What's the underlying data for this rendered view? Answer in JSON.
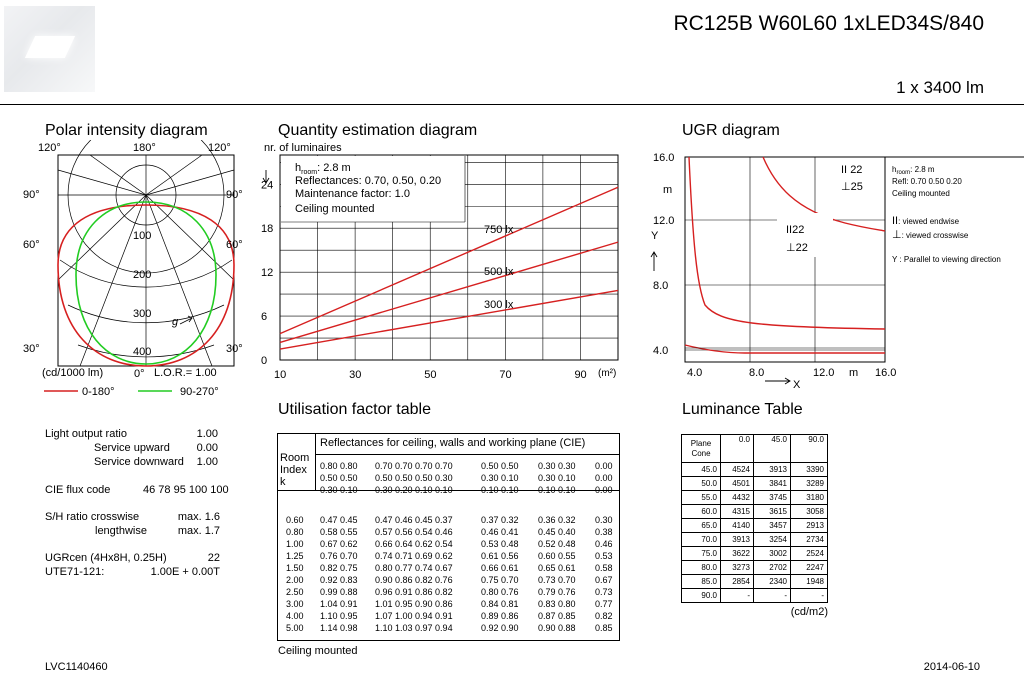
{
  "header": {
    "title": "RC125B W60L60 1xLED34S/840",
    "lumen": "1 x 3400 lm"
  },
  "polar": {
    "title": "Polar intensity diagram",
    "angle_labels": [
      "120°",
      "180°",
      "120°",
      "90°",
      "90°",
      "60°",
      "60°",
      "30°",
      "30°",
      "0°"
    ],
    "ring_labels": [
      "100",
      "200",
      "300",
      "400"
    ],
    "gamma": "g",
    "unit": "(cd/1000 lm)",
    "zero": "0°",
    "lor": "L.O.R.= 1.00",
    "legend": [
      {
        "label": "0-180°",
        "color": "#d62020"
      },
      {
        "label": "90-270°",
        "color": "#22cc22"
      }
    ]
  },
  "quantity": {
    "title": "Quantity estimation diagram",
    "ylabel": "nr. of luminaires",
    "y_ticks": [
      "24",
      "18",
      "12",
      "6",
      "0"
    ],
    "x_ticks": [
      "10",
      "30",
      "50",
      "70",
      "90"
    ],
    "x_unit": "(m²)",
    "info": [
      "h room: 2.8 m",
      "Reflectances: 0.70, 0.50, 0.20",
      "Maintenance factor: 1.0",
      "Ceiling mounted"
    ],
    "h_sub": "room",
    "h_rest": ": 2.8 m",
    "info_lines": [
      "Reflectances: 0.70, 0.50, 0.20",
      "Maintenance factor: 1.0",
      "Ceiling mounted"
    ],
    "series_labels": [
      "750 lx",
      "500 lx",
      "300 lx"
    ],
    "line_color": "#d62020"
  },
  "chart_data": [
    {
      "type": "line",
      "title": "Quantity estimation diagram",
      "xlabel": "(m²)",
      "ylabel": "nr. of luminaires",
      "xlim": [
        10,
        100
      ],
      "ylim": [
        0,
        28
      ],
      "series": [
        {
          "name": "750 lx",
          "x": [
            10,
            100
          ],
          "y": [
            3.6,
            23.6
          ]
        },
        {
          "name": "500 lx",
          "x": [
            10,
            100
          ],
          "y": [
            2.4,
            16.1
          ]
        },
        {
          "name": "300 lx",
          "x": [
            10,
            100
          ],
          "y": [
            1.5,
            9.5
          ]
        }
      ]
    },
    {
      "type": "line",
      "title": "UGR diagram",
      "xlabel": "X",
      "ylabel": "Y",
      "xlim": [
        2.8,
        16.0
      ],
      "ylim": [
        3.5,
        16.0
      ],
      "x_ticks": [
        "4.0",
        "8.0",
        "12.0",
        "16.0"
      ],
      "y_ticks": [
        "16.0",
        "12.0",
        "8.0",
        "4.0"
      ]
    }
  ],
  "ugr": {
    "title": "UGR diagram",
    "y_ticks": [
      "16.0",
      "12.0",
      "8.0",
      "4.0"
    ],
    "x_ticks": [
      "4.0",
      "8.0",
      "12.0",
      "16.0"
    ],
    "m_label": "m",
    "x_letter": "X",
    "y_letter": "Y",
    "val_end_1": "22",
    "val_cross_1": "25",
    "val_end_2": "22",
    "val_cross_2": "22",
    "legend_h": "h",
    "legend_h_sub": "room",
    "legend_h_rest": ": 2.8 m",
    "legend_lines": [
      "Refl: 0.70 0.50 0.20",
      "Ceiling mounted"
    ],
    "endwise": ": viewed endwise",
    "crosswise": ": viewed crosswise",
    "parallel": "Y   : Parallel to viewing direction"
  },
  "lor_block": {
    "rows": [
      {
        "label": "Light output ratio",
        "value": "1.00"
      },
      {
        "label": "Service upward",
        "value": "0.00"
      },
      {
        "label": "Service downward",
        "value": "1.00"
      }
    ],
    "cie": "CIE flux code",
    "cie_val": "46 78 95 100 100",
    "sh1_label": "S/H ratio crosswise",
    "sh1_val": "max. 1.6",
    "sh2_label": "lengthwise",
    "sh2_val": "max. 1.7",
    "ugr_label": "UGRcen (4Hx8H, 0.25H)",
    "ugr_val": "22",
    "ute_label": "UTE71-121:",
    "ute_val": "1.00E + 0.00T"
  },
  "uf": {
    "title": "Utilisation factor table",
    "header": "Reflectances for ceiling, walls and working plane (CIE)",
    "room": [
      "Room",
      "Index",
      "k"
    ],
    "refl_groups": [
      [
        "0.80 0.80",
        "0.50 0.50",
        "0.30 0.10"
      ],
      [
        "0.70 0.70 0.70 0.70",
        "0.50 0.50 0.50 0.30",
        "0.30 0.20 0.10 0.10"
      ],
      [
        "0.50 0.50",
        "0.30 0.10",
        "0.10 0.10"
      ],
      [
        "0.30 0.30",
        "0.30 0.10",
        "0.10 0.10"
      ],
      [
        "0.00",
        "0.00",
        "0.00"
      ]
    ],
    "k": [
      "0.60",
      "0.80",
      "1.00",
      "1.25",
      "1.50",
      "2.00",
      "2.50",
      "3.00",
      "4.00",
      "5.00"
    ],
    "g1": [
      "0.47 0.45",
      "0.58 0.55",
      "0.67 0.62",
      "0.76 0.70",
      "0.82 0.75",
      "0.92 0.83",
      "0.99 0.88",
      "1.04 0.91",
      "1.10 0.95",
      "1.14 0.98"
    ],
    "g2": [
      "0.47 0.46 0.45 0.37",
      "0.57 0.56 0.54 0.46",
      "0.66 0.64 0.62 0.54",
      "0.74 0.71 0.69 0.62",
      "0.80 0.77 0.74 0.67",
      "0.90 0.86 0.82 0.76",
      "0.96 0.91 0.86 0.82",
      "1.01 0.95 0.90 0.86",
      "1.07 1.00 0.94 0.91",
      "1.10 1.03 0.97 0.94"
    ],
    "g3": [
      "0.37 0.32",
      "0.46 0.41",
      "0.53 0.48",
      "0.61 0.56",
      "0.66 0.61",
      "0.75 0.70",
      "0.80 0.76",
      "0.84 0.81",
      "0.89 0.86",
      "0.92 0.90"
    ],
    "g4": [
      "0.36 0.32",
      "0.45 0.40",
      "0.52 0.48",
      "0.60 0.55",
      "0.65 0.61",
      "0.73 0.70",
      "0.79 0.76",
      "0.83 0.80",
      "0.87 0.85",
      "0.90 0.88"
    ],
    "g5": [
      "0.30",
      "0.38",
      "0.46",
      "0.53",
      "0.58",
      "0.67",
      "0.73",
      "0.77",
      "0.82",
      "0.85"
    ],
    "footer": "Ceiling mounted"
  },
  "luminance": {
    "title": "Luminance Table",
    "head": [
      "Plane",
      "Cone",
      "0.0",
      "45.0",
      "90.0"
    ],
    "rows": [
      [
        "45.0",
        "4524",
        "3913",
        "3390"
      ],
      [
        "50.0",
        "4501",
        "3841",
        "3289"
      ],
      [
        "55.0",
        "4432",
        "3745",
        "3180"
      ],
      [
        "60.0",
        "4315",
        "3615",
        "3058"
      ],
      [
        "65.0",
        "4140",
        "3457",
        "2913"
      ],
      [
        "70.0",
        "3913",
        "3254",
        "2734"
      ],
      [
        "75.0",
        "3622",
        "3002",
        "2524"
      ],
      [
        "80.0",
        "3273",
        "2702",
        "2247"
      ],
      [
        "85.0",
        "2854",
        "2340",
        "1948"
      ],
      [
        "90.0",
        "-",
        "-",
        "-"
      ]
    ],
    "unit": "(cd/m2)"
  },
  "footer": {
    "left": "LVC1140460",
    "right": "2014-06-10"
  }
}
